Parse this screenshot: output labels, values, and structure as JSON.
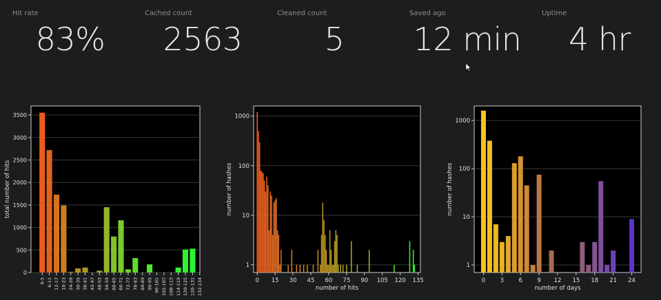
{
  "stats": [
    {
      "label": "Hit rate",
      "value": "83%"
    },
    {
      "label": "Cached count",
      "value": "2563"
    },
    {
      "label": "Cleaned count",
      "value": "5"
    },
    {
      "label": "Saved ago",
      "value": "12 min"
    },
    {
      "label": "Uptime",
      "value": "4 hr"
    }
  ],
  "chart_data": [
    {
      "type": "bar",
      "ylabel": "total number of hits",
      "xlabel": "",
      "ylim": [
        0,
        3700
      ],
      "yticks": [
        0,
        500,
        1000,
        1500,
        2000,
        2500,
        3000,
        3500
      ],
      "categories": [
        "0-5",
        "6-11",
        "12-17",
        "18-23",
        "24-29",
        "30-35",
        "36-41",
        "42-47",
        "48-53",
        "54-59",
        "60-65",
        "66-71",
        "72-77",
        "78-83",
        "84-89",
        "90-95",
        "96-101",
        "102-107",
        "108-113",
        "114-119",
        "120-125",
        "126-131",
        "132-134"
      ],
      "values": [
        3550,
        2720,
        1730,
        1490,
        15,
        90,
        110,
        0,
        40,
        1450,
        800,
        1160,
        70,
        320,
        0,
        180,
        0,
        0,
        0,
        110,
        510,
        530,
        0
      ],
      "colors": [
        "#ec5a1e",
        "#e2631f",
        "#d6731f",
        "#cc7f22",
        "#c38a23",
        "#b79524",
        "#ad9926",
        "#a3a128",
        "#9aaa2a",
        "#8fb72b",
        "#84c02c",
        "#78c92d",
        "#6dd22e",
        "#62da2f",
        "#59e12f",
        "#52e530",
        "#4be730",
        "#44ea31",
        "#3dec31",
        "#37ef32",
        "#30f132",
        "#2bf333",
        "#28f533"
      ],
      "grid": true
    },
    {
      "type": "bar",
      "scale": "log",
      "ylabel": "number of hashes",
      "xlabel": "number of hits",
      "xlim": [
        -3,
        137
      ],
      "ylim": [
        0.7,
        1600
      ],
      "yticks": [
        1,
        10,
        100,
        1000
      ],
      "xticks": [
        0,
        15,
        30,
        45,
        60,
        75,
        90,
        105,
        120,
        135
      ],
      "x": [
        0,
        1,
        2,
        3,
        4,
        5,
        6,
        7,
        8,
        9,
        10,
        11,
        12,
        13,
        14,
        15,
        16,
        17,
        18,
        19,
        20,
        26,
        29,
        33,
        36,
        39,
        42,
        47,
        51,
        53,
        54,
        55,
        56,
        57,
        58,
        59,
        60,
        61,
        62,
        63,
        64,
        65,
        66,
        67,
        68,
        70,
        72,
        75,
        79,
        84,
        94,
        115,
        128,
        131,
        132
      ],
      "values": [
        1200,
        500,
        300,
        80,
        75,
        70,
        50,
        30,
        60,
        40,
        5,
        30,
        25,
        4,
        18,
        20,
        22,
        5,
        4,
        1,
        2,
        1,
        2,
        1,
        1,
        1,
        1,
        1,
        2,
        1,
        4,
        18,
        8,
        4,
        2,
        1,
        1,
        5,
        2,
        1,
        1,
        3,
        5,
        4,
        1,
        1,
        1,
        1,
        3,
        1,
        2,
        1,
        3,
        2,
        1
      ],
      "grid": true
    },
    {
      "type": "bar",
      "scale": "log",
      "ylabel": "number of hashes",
      "xlabel": "number of days",
      "xlim": [
        -1.5,
        25.5
      ],
      "ylim": [
        0.7,
        2000
      ],
      "yticks": [
        1,
        10,
        100,
        1000
      ],
      "xticks": [
        0,
        3,
        6,
        9,
        12,
        15,
        18,
        21,
        24
      ],
      "x": [
        0,
        1,
        2,
        3,
        4,
        5,
        6,
        7,
        8,
        9,
        11,
        16,
        17,
        18,
        19,
        20,
        21,
        24
      ],
      "values": [
        1600,
        380,
        7,
        3,
        4,
        130,
        180,
        45,
        1,
        75,
        2,
        3,
        1,
        3,
        55,
        1,
        2,
        9
      ],
      "colors": [
        "#f6c51c",
        "#f3c01e",
        "#efb821",
        "#eab124",
        "#e3a828",
        "#dc9d2d",
        "#d59432",
        "#cd8a37",
        "#c4813d",
        "#bb7843",
        "#a86a55",
        "#8f5d79",
        "#8a5a84",
        "#845690",
        "#7d4f9e",
        "#764aab",
        "#6c43b8",
        "#5a35c8"
      ],
      "grid": true
    }
  ]
}
